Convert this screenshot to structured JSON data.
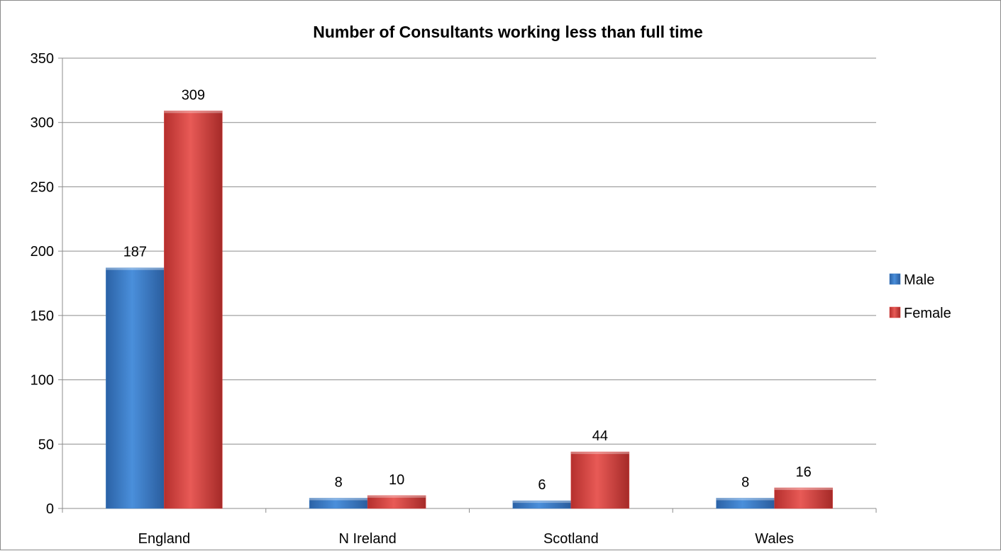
{
  "chart_data": {
    "type": "bar",
    "title": "Number of Consultants working less than full time",
    "xlabel": "",
    "ylabel": "",
    "categories": [
      "England",
      "N Ireland",
      "Scotland",
      "Wales"
    ],
    "series": [
      {
        "name": "Male",
        "values": [
          187,
          8,
          6,
          8
        ],
        "color": "#3c7dc4"
      },
      {
        "name": "Female",
        "values": [
          309,
          10,
          44,
          16
        ],
        "color": "#d9413e"
      }
    ],
    "ylim": [
      0,
      350
    ],
    "yticks": [
      "0",
      "50",
      "100",
      "150",
      "200",
      "250",
      "300",
      "350"
    ],
    "data_labels": [
      [
        "187",
        "8",
        "6",
        "8"
      ],
      [
        "309",
        "10",
        "44",
        "16"
      ]
    ],
    "grid": true,
    "legend_position": "right"
  }
}
